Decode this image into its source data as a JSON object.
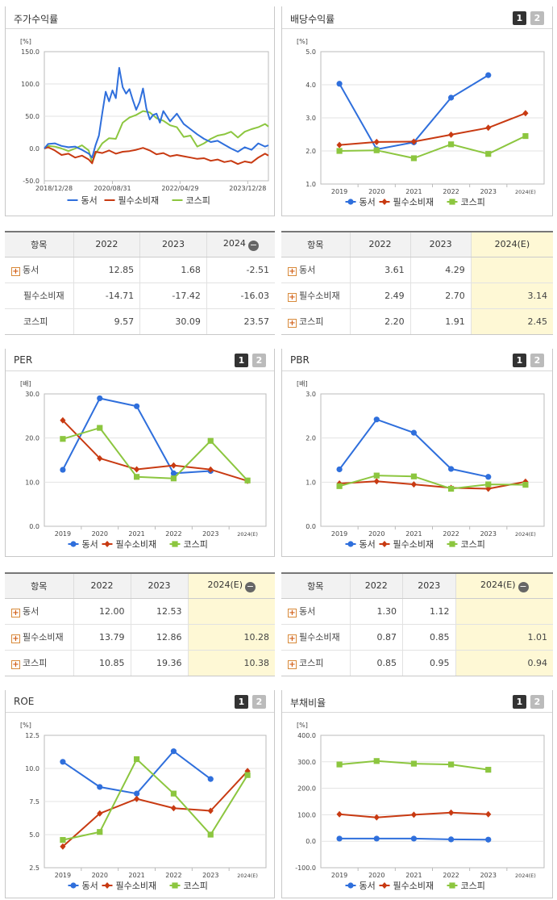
{
  "colors": {
    "dongseo": "#2f6fdc",
    "consumer": "#c83a12",
    "kospi": "#8cc63f",
    "tbl_est": "#fef8d5"
  },
  "legend": {
    "s1": "동서",
    "s2": "필수소비재",
    "s3": "코스피"
  },
  "pager": {
    "p1": "1",
    "p2": "2"
  },
  "stock_table": {
    "head": {
      "item": "항목",
      "c1": "2022",
      "c2": "2023",
      "c3": "2024"
    },
    "rows": [
      {
        "name": "동서",
        "v": [
          "12.85",
          "1.68",
          "-2.51"
        ]
      },
      {
        "name": "필수소비재",
        "v": [
          "-14.71",
          "-17.42",
          "-16.03"
        ]
      },
      {
        "name": "코스피",
        "v": [
          "9.57",
          "30.09",
          "23.57"
        ]
      }
    ]
  },
  "div_table": {
    "head": {
      "item": "항목",
      "c1": "2022",
      "c2": "2023",
      "c3": "2024(E)"
    },
    "rows": [
      {
        "name": "동서",
        "v": [
          "3.61",
          "4.29",
          ""
        ]
      },
      {
        "name": "필수소비재",
        "v": [
          "2.49",
          "2.70",
          "3.14"
        ]
      },
      {
        "name": "코스피",
        "v": [
          "2.20",
          "1.91",
          "2.45"
        ]
      }
    ]
  },
  "per_table": {
    "head": {
      "item": "항목",
      "c1": "2022",
      "c2": "2023",
      "c3": "2024(E)"
    },
    "rows": [
      {
        "name": "동서",
        "v": [
          "12.00",
          "12.53",
          ""
        ]
      },
      {
        "name": "필수소비재",
        "v": [
          "13.79",
          "12.86",
          "10.28"
        ]
      },
      {
        "name": "코스피",
        "v": [
          "10.85",
          "19.36",
          "10.38"
        ]
      }
    ]
  },
  "pbr_table": {
    "head": {
      "item": "항목",
      "c1": "2022",
      "c2": "2023",
      "c3": "2024(E)"
    },
    "rows": [
      {
        "name": "동서",
        "v": [
          "1.30",
          "1.12",
          ""
        ]
      },
      {
        "name": "필수소비재",
        "v": [
          "0.87",
          "0.85",
          "1.01"
        ]
      },
      {
        "name": "코스피",
        "v": [
          "0.85",
          "0.95",
          "0.94"
        ]
      }
    ]
  },
  "chart_data": [
    {
      "id": "stock",
      "title": "주가수익률",
      "type": "line",
      "unit": "[%]",
      "ylim": [
        -50,
        150
      ],
      "yticks": [
        "150.0",
        "100.0",
        "50.0",
        "0.0",
        "-50.0"
      ],
      "xticks": [
        "2018/12/28",
        "2020/08/31",
        "2022/04/29",
        "2023/12/28"
      ],
      "x_range": [
        "2018-12-28",
        "2024-07"
      ],
      "series": [
        {
          "name": "동서",
          "points": [
            [
              "2018-12-28",
              0
            ],
            [
              "2019-02",
              7
            ],
            [
              "2019-04",
              8
            ],
            [
              "2019-06",
              4
            ],
            [
              "2019-08",
              2
            ],
            [
              "2019-10",
              3
            ],
            [
              "2019-12",
              -2
            ],
            [
              "2020-02",
              -8
            ],
            [
              "2020-03",
              -14
            ],
            [
              "2020-04",
              5
            ],
            [
              "2020-05",
              20
            ],
            [
              "2020-06",
              55
            ],
            [
              "2020-07",
              88
            ],
            [
              "2020-08",
              73
            ],
            [
              "2020-09",
              90
            ],
            [
              "2020-10",
              78
            ],
            [
              "2020-11",
              125
            ],
            [
              "2020-12",
              95
            ],
            [
              "2021-01",
              85
            ],
            [
              "2021-02",
              92
            ],
            [
              "2021-03",
              75
            ],
            [
              "2021-04",
              60
            ],
            [
              "2021-05",
              72
            ],
            [
              "2021-06",
              93
            ],
            [
              "2021-07",
              62
            ],
            [
              "2021-08",
              45
            ],
            [
              "2021-09",
              52
            ],
            [
              "2021-10",
              54
            ],
            [
              "2021-11",
              40
            ],
            [
              "2021-12",
              58
            ],
            [
              "2022-02",
              42
            ],
            [
              "2022-04",
              54
            ],
            [
              "2022-06",
              38
            ],
            [
              "2022-08",
              30
            ],
            [
              "2022-10",
              22
            ],
            [
              "2022-12",
              15
            ],
            [
              "2023-02",
              10
            ],
            [
              "2023-04",
              12
            ],
            [
              "2023-06",
              6
            ],
            [
              "2023-08",
              0
            ],
            [
              "2023-10",
              -5
            ],
            [
              "2023-12",
              2
            ],
            [
              "2024-02",
              -2
            ],
            [
              "2024-04",
              8
            ],
            [
              "2024-06",
              3
            ],
            [
              "2024-07",
              5
            ]
          ]
        },
        {
          "name": "필수소비재",
          "points": [
            [
              "2018-12-28",
              0
            ],
            [
              "2019-02",
              2
            ],
            [
              "2019-04",
              -3
            ],
            [
              "2019-06",
              -10
            ],
            [
              "2019-08",
              -8
            ],
            [
              "2019-10",
              -14
            ],
            [
              "2019-12",
              -11
            ],
            [
              "2020-02",
              -17
            ],
            [
              "2020-03",
              -23
            ],
            [
              "2020-04",
              -5
            ],
            [
              "2020-06",
              -7
            ],
            [
              "2020-08",
              -3
            ],
            [
              "2020-10",
              -8
            ],
            [
              "2020-12",
              -5
            ],
            [
              "2021-02",
              -4
            ],
            [
              "2021-04",
              -2
            ],
            [
              "2021-06",
              1
            ],
            [
              "2021-08",
              -3
            ],
            [
              "2021-10",
              -9
            ],
            [
              "2021-12",
              -7
            ],
            [
              "2022-02",
              -12
            ],
            [
              "2022-04",
              -10
            ],
            [
              "2022-06",
              -12
            ],
            [
              "2022-08",
              -14
            ],
            [
              "2022-10",
              -16
            ],
            [
              "2022-12",
              -15
            ],
            [
              "2023-02",
              -19
            ],
            [
              "2023-04",
              -17
            ],
            [
              "2023-06",
              -21
            ],
            [
              "2023-08",
              -19
            ],
            [
              "2023-10",
              -24
            ],
            [
              "2023-12",
              -20
            ],
            [
              "2024-02",
              -22
            ],
            [
              "2024-04",
              -14
            ],
            [
              "2024-06",
              -8
            ],
            [
              "2024-07",
              -11
            ]
          ]
        },
        {
          "name": "코스피",
          "points": [
            [
              "2018-12-28",
              0
            ],
            [
              "2019-02",
              4
            ],
            [
              "2019-04",
              3
            ],
            [
              "2019-06",
              0
            ],
            [
              "2019-08",
              -4
            ],
            [
              "2019-10",
              0
            ],
            [
              "2019-12",
              5
            ],
            [
              "2020-02",
              -3
            ],
            [
              "2020-03",
              -22
            ],
            [
              "2020-04",
              -8
            ],
            [
              "2020-06",
              8
            ],
            [
              "2020-08",
              16
            ],
            [
              "2020-10",
              15
            ],
            [
              "2020-12",
              40
            ],
            [
              "2021-02",
              48
            ],
            [
              "2021-04",
              52
            ],
            [
              "2021-06",
              58
            ],
            [
              "2021-08",
              56
            ],
            [
              "2021-10",
              47
            ],
            [
              "2021-12",
              43
            ],
            [
              "2022-02",
              36
            ],
            [
              "2022-04",
              33
            ],
            [
              "2022-06",
              18
            ],
            [
              "2022-08",
              20
            ],
            [
              "2022-10",
              3
            ],
            [
              "2022-12",
              8
            ],
            [
              "2023-02",
              15
            ],
            [
              "2023-04",
              20
            ],
            [
              "2023-06",
              22
            ],
            [
              "2023-08",
              26
            ],
            [
              "2023-10",
              17
            ],
            [
              "2023-12",
              26
            ],
            [
              "2024-02",
              30
            ],
            [
              "2024-04",
              33
            ],
            [
              "2024-06",
              38
            ],
            [
              "2024-07",
              34
            ]
          ]
        }
      ]
    },
    {
      "id": "div",
      "title": "배당수익률",
      "type": "line",
      "unit": "[%]",
      "ylim": [
        1,
        5
      ],
      "yticks": [
        "5.0",
        "4.0",
        "3.0",
        "2.0",
        "1.0"
      ],
      "categories": [
        "2019",
        "2020",
        "2021",
        "2022",
        "2023",
        "2024(E)"
      ],
      "series": [
        {
          "name": "동서",
          "values": [
            4.03,
            2.05,
            2.26,
            3.61,
            4.29,
            null
          ]
        },
        {
          "name": "필수소비재",
          "values": [
            2.18,
            2.27,
            2.28,
            2.49,
            2.7,
            3.14
          ]
        },
        {
          "name": "코스피",
          "values": [
            2.0,
            2.02,
            1.78,
            2.2,
            1.91,
            2.45
          ]
        }
      ]
    },
    {
      "id": "per",
      "title": "PER",
      "type": "line",
      "unit": "[배]",
      "ylim": [
        0,
        30
      ],
      "yticks": [
        "30.0",
        "20.0",
        "10.0",
        "0.0"
      ],
      "categories": [
        "2019",
        "2020",
        "2021",
        "2022",
        "2023",
        "2024(E)"
      ],
      "series": [
        {
          "name": "동서",
          "values": [
            12.8,
            29.0,
            27.2,
            12.0,
            12.53,
            null
          ]
        },
        {
          "name": "필수소비재",
          "values": [
            24.0,
            15.4,
            12.9,
            13.79,
            12.86,
            10.28
          ]
        },
        {
          "name": "코스피",
          "values": [
            19.8,
            22.3,
            11.2,
            10.85,
            19.36,
            10.38
          ]
        }
      ]
    },
    {
      "id": "pbr",
      "title": "PBR",
      "type": "line",
      "unit": "[배]",
      "ylim": [
        0,
        3
      ],
      "yticks": [
        "3.0",
        "2.0",
        "1.0",
        "0.0"
      ],
      "categories": [
        "2019",
        "2020",
        "2021",
        "2022",
        "2023",
        "2024(E)"
      ],
      "series": [
        {
          "name": "동서",
          "values": [
            1.29,
            2.42,
            2.12,
            1.3,
            1.12,
            null
          ]
        },
        {
          "name": "필수소비재",
          "values": [
            0.97,
            1.02,
            0.95,
            0.87,
            0.85,
            1.01
          ]
        },
        {
          "name": "코스피",
          "values": [
            0.91,
            1.15,
            1.13,
            0.85,
            0.95,
            0.94
          ]
        }
      ]
    },
    {
      "id": "roe",
      "title": "ROE",
      "type": "line",
      "unit": "[%]",
      "ylim": [
        2.5,
        12.5
      ],
      "yticks": [
        "12.5",
        "10.0",
        "7.5",
        "5.0",
        "2.5"
      ],
      "categories": [
        "2019",
        "2020",
        "2021",
        "2022",
        "2023",
        "2024(E)"
      ],
      "series": [
        {
          "name": "동서",
          "values": [
            10.5,
            8.6,
            8.1,
            11.3,
            9.2,
            null
          ]
        },
        {
          "name": "필수소비재",
          "values": [
            4.1,
            6.6,
            7.7,
            7.0,
            6.8,
            9.8
          ]
        },
        {
          "name": "코스피",
          "values": [
            4.6,
            5.2,
            10.7,
            8.1,
            5.0,
            9.5
          ]
        }
      ]
    },
    {
      "id": "debt",
      "title": "부채비율",
      "type": "line",
      "unit": "[%]",
      "ylim": [
        -100,
        400
      ],
      "yticks": [
        "400.0",
        "300.0",
        "200.0",
        "100.0",
        "0.0",
        "-100.0"
      ],
      "categories": [
        "2019",
        "2020",
        "2021",
        "2022",
        "2023",
        "2024(E)"
      ],
      "series": [
        {
          "name": "동서",
          "values": [
            10,
            10,
            10,
            7,
            6,
            null
          ]
        },
        {
          "name": "필수소비재",
          "values": [
            102,
            90,
            100,
            108,
            102,
            null
          ]
        },
        {
          "name": "코스피",
          "values": [
            290,
            303,
            293,
            290,
            270,
            null
          ]
        }
      ]
    }
  ]
}
